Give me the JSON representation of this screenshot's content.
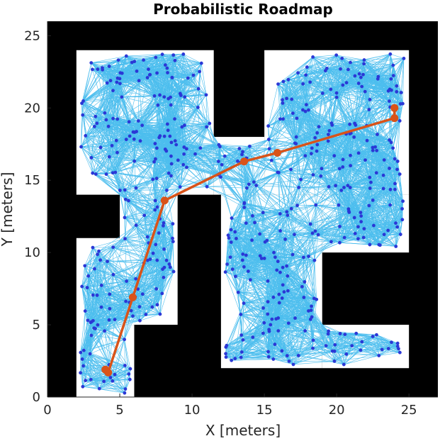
{
  "chart_data": {
    "type": "scatter",
    "title": "Probabilistic Roadmap",
    "xlabel": "X [meters]",
    "ylabel": "Y [meters]",
    "xlim": [
      0,
      27
    ],
    "ylim": [
      0,
      26
    ],
    "xticks": [
      0,
      5,
      10,
      15,
      20,
      25
    ],
    "yticks": [
      0,
      5,
      10,
      15,
      20,
      25
    ],
    "grid": false,
    "legend": "none",
    "colors": {
      "obstacle": "#000000",
      "free_space": "#ffffff",
      "roadmap_edges": "#4dbeee",
      "nodes": "#2b38d6",
      "path": "#d95319"
    },
    "free_regions": [
      {
        "x": [
          2,
          11.5
        ],
        "y": [
          14,
          24
        ]
      },
      {
        "x": [
          5,
          9
        ],
        "y": [
          5,
          14
        ]
      },
      {
        "x": [
          2,
          5
        ],
        "y": [
          0,
          11
        ]
      },
      {
        "x": [
          5,
          6
        ],
        "y": [
          0,
          5
        ]
      },
      {
        "x": [
          15,
          25
        ],
        "y": [
          14,
          24
        ]
      },
      {
        "x": [
          11.5,
          15
        ],
        "y": [
          14,
          18
        ]
      },
      {
        "x": [
          12,
          19
        ],
        "y": [
          2,
          14
        ]
      },
      {
        "x": [
          19,
          25
        ],
        "y": [
          2,
          5
        ]
      },
      {
        "x": [
          19,
          25
        ],
        "y": [
          10,
          14
        ]
      }
    ],
    "path": {
      "x": [
        4.0,
        4.2,
        5.9,
        8.1,
        13.6,
        15.9,
        24.0,
        24.0
      ],
      "y": [
        1.9,
        1.7,
        6.9,
        13.6,
        16.3,
        16.9,
        19.3,
        20.0
      ]
    }
  }
}
